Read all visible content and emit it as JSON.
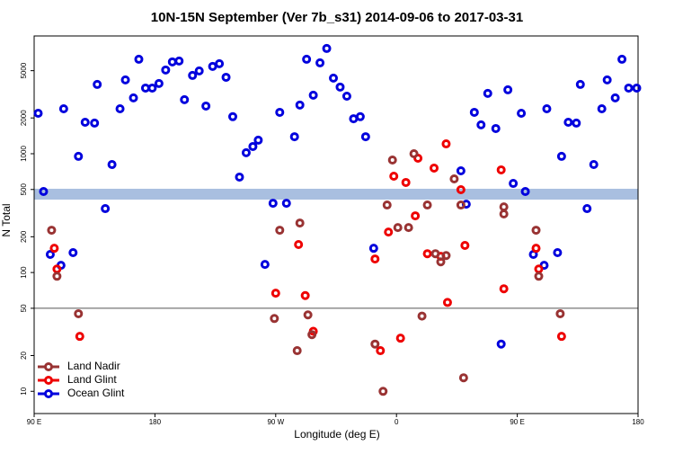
{
  "chart_data": {
    "type": "scatter",
    "title": "10N-15N September (Ver 7b_s31)   2014-09-06 to 2017-03-31",
    "x_label": "Longitude (deg E)",
    "y_label": "N Total",
    "xlim": [
      90,
      540
    ],
    "ylim": [
      6.5,
      9800
    ],
    "log_y": true,
    "xticks": [
      {
        "value": 90,
        "label": "90 E"
      },
      180,
      {
        "value": 270,
        "label": "90 W"
      },
      {
        "value": 360,
        "label": "0"
      },
      {
        "value": 450,
        "label": "90 E"
      },
      {
        "value": 540,
        "label": "180"
      }
    ],
    "yticks": [
      10,
      20,
      50,
      100,
      200,
      500,
      1000,
      2000,
      5000
    ],
    "reference_line": 50,
    "band": [
      411,
      507
    ],
    "band_color": "#a9bfe0",
    "legend": "bottom-left",
    "series": [
      {
        "name": "Ocean Glint",
        "color": "#0000dd",
        "x": [
          93,
          97,
          102,
          110,
          112,
          119,
          123,
          128,
          135,
          137,
          143,
          148,
          154,
          158,
          164,
          168,
          173,
          178,
          183,
          188,
          193,
          198,
          202,
          208,
          213,
          218,
          223,
          228,
          233,
          238,
          243,
          248,
          253,
          257,
          262,
          268,
          273,
          278,
          284,
          288,
          293,
          298,
          303,
          308,
          313,
          318,
          323,
          328,
          333,
          337,
          343,
          408,
          412,
          418,
          423,
          428,
          434,
          438,
          443,
          447,
          453,
          456,
          462,
          470,
          472,
          480,
          483,
          488,
          494,
          497,
          502,
          507,
          513,
          517,
          523,
          528,
          533,
          539
        ],
        "values": [
          2190,
          481,
          142,
          115,
          2390,
          147,
          950,
          1840,
          1810,
          3830,
          345,
          811,
          2390,
          4180,
          2950,
          6240,
          3570,
          3570,
          3900,
          5070,
          5930,
          6030,
          2850,
          4560,
          4980,
          2520,
          5430,
          5720,
          4400,
          2050,
          636,
          1020,
          1150,
          1300,
          117,
          383,
          2230,
          383,
          1390,
          2570,
          6240,
          3110,
          5820,
          7690,
          4330,
          3640,
          3050,
          1970,
          2050,
          1390,
          160,
          718,
          376,
          2230,
          1750,
          3220,
          1630,
          25,
          3450,
          562,
          2190,
          481,
          142,
          115,
          2390,
          147,
          950,
          1840,
          1810,
          3830,
          345,
          811,
          2390,
          4180,
          2950,
          6240,
          3570,
          3570
        ]
      },
      {
        "name": "Land Glint",
        "color": "#ee0000",
        "x": [
          105,
          107,
          124,
          270,
          287,
          292,
          298,
          344,
          348,
          354,
          358,
          363,
          367,
          374,
          376,
          383,
          388,
          393,
          397,
          398,
          408,
          411,
          438,
          440,
          464,
          466,
          483
        ],
        "values": [
          160,
          107,
          29,
          67,
          172,
          64,
          32,
          130,
          22,
          219,
          647,
          28,
          573,
          300,
          916,
          144,
          757,
          137,
          1210,
          56,
          498,
          169,
          731,
          73,
          160,
          107,
          29
        ]
      },
      {
        "name": "Land Nadir",
        "color": "#993333",
        "x": [
          103,
          107,
          123,
          269,
          273,
          288,
          294,
          297,
          286,
          344,
          350,
          353,
          357,
          361,
          369,
          373,
          379,
          383,
          389,
          393,
          397,
          403,
          408,
          410,
          440,
          440,
          464,
          466,
          482
        ],
        "values": [
          227,
          93,
          45,
          41,
          227,
          261,
          44,
          30,
          22,
          25,
          10,
          370,
          885,
          239,
          239,
          1000,
          43,
          370,
          144,
          123,
          139,
          614,
          370,
          13,
          311,
          357,
          227,
          93,
          45
        ]
      }
    ]
  }
}
